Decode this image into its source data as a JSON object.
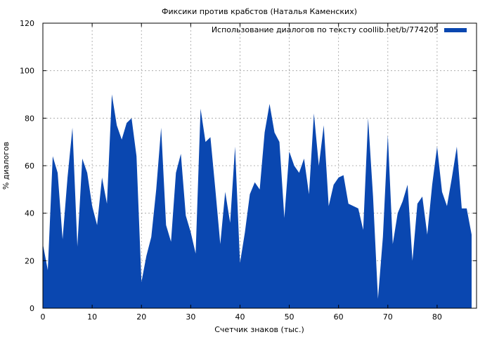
{
  "chart_data": {
    "type": "area",
    "title": "Фиксики против крабстов (Наталья Каменских)",
    "xlabel": "Счетчик знаков (тыс.)",
    "ylabel": "% диалогов",
    "xlim": [
      0,
      88
    ],
    "ylim": [
      0,
      120
    ],
    "xticks": [
      0,
      10,
      20,
      30,
      40,
      50,
      60,
      70,
      80
    ],
    "yticks": [
      0,
      20,
      40,
      60,
      80,
      100,
      120
    ],
    "grid": true,
    "legend_position": "top-right",
    "series": [
      {
        "name": "Использование диалогов по тексту coollib.net/b/774205",
        "color": "#0a47b0",
        "x": [
          0,
          1,
          2,
          3,
          4,
          5,
          6,
          7,
          8,
          9,
          10,
          11,
          12,
          13,
          14,
          15,
          16,
          17,
          18,
          19,
          20,
          21,
          22,
          23,
          24,
          25,
          26,
          27,
          28,
          29,
          30,
          31,
          32,
          33,
          34,
          35,
          36,
          37,
          38,
          39,
          40,
          41,
          42,
          43,
          44,
          45,
          46,
          47,
          48,
          49,
          50,
          51,
          52,
          53,
          54,
          55,
          56,
          57,
          58,
          59,
          60,
          61,
          62,
          63,
          64,
          65,
          66,
          67,
          68,
          69,
          70,
          71,
          72,
          73,
          74,
          75,
          76,
          77,
          78,
          79,
          80,
          81,
          82,
          83,
          84,
          85,
          86,
          87
        ],
        "y": [
          27,
          16,
          64,
          57,
          29,
          55,
          76,
          26,
          63,
          57,
          43,
          35,
          55,
          44,
          90,
          77,
          71,
          78,
          80,
          64,
          11,
          22,
          30,
          50,
          76,
          35,
          28,
          57,
          65,
          39,
          32,
          23,
          84,
          70,
          72,
          50,
          27,
          49,
          36,
          68,
          19,
          32,
          48,
          53,
          50,
          74,
          86,
          74,
          70,
          38,
          66,
          60,
          57,
          63,
          48,
          82,
          60,
          77,
          43,
          52,
          55,
          56,
          44,
          43,
          42,
          33,
          80,
          47,
          4,
          30,
          73,
          27,
          40,
          45,
          52,
          20,
          44,
          47,
          31,
          52,
          68,
          49,
          43,
          55,
          68,
          42,
          42,
          31
        ]
      }
    ]
  }
}
